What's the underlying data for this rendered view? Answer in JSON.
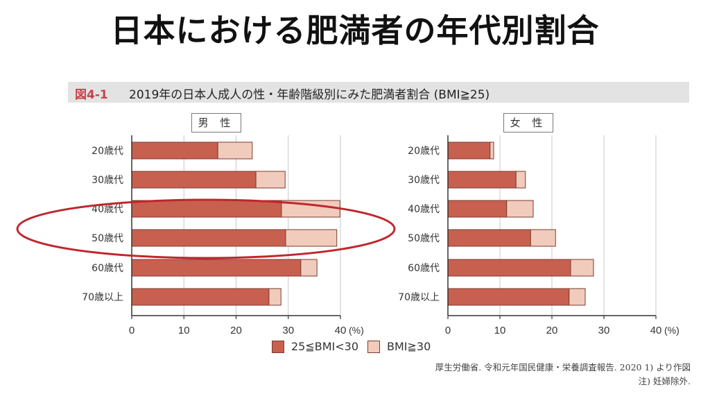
{
  "slide_title": "日本における肥満者の年代別割合",
  "figure": {
    "number": "図4-1",
    "title": "2019年の日本人成人の性・年齢階級別にみた肥満者割合 (BMI≧25)"
  },
  "legend": [
    "25≦BMI<30",
    "BMI≧30"
  ],
  "source": [
    "厚生労働省. 令和元年国民健康・栄養調査報告. 2020 1) より作図",
    "注) 妊婦除外."
  ],
  "colors": {
    "bmi25_30": "#c8604f",
    "bmi30": "#f1cbbb",
    "border": "#7a3b30",
    "highlight": "#c0262d"
  },
  "chart_data": [
    {
      "type": "bar",
      "orientation": "horizontal",
      "stacked": true,
      "title": "男 性",
      "categories": [
        "20歳代",
        "30歳代",
        "40歳代",
        "50歳代",
        "60歳代",
        "70歳以上"
      ],
      "series": [
        {
          "name": "25≦BMI<30",
          "values": [
            16.5,
            23.8,
            28.7,
            29.5,
            32.4,
            26.3
          ]
        },
        {
          "name": "BMI≧30",
          "values": [
            6.6,
            5.6,
            11.2,
            9.8,
            3.1,
            2.3
          ]
        }
      ],
      "xlim": [
        0,
        40
      ],
      "xticks": [
        "0",
        "10",
        "20",
        "30",
        "40"
      ],
      "xunit": "(%)",
      "highlighted": [
        "40歳代",
        "50歳代"
      ]
    },
    {
      "type": "bar",
      "orientation": "horizontal",
      "stacked": true,
      "title": "女 性",
      "categories": [
        "20歳代",
        "30歳代",
        "40歳代",
        "50歳代",
        "60歳代",
        "70歳以上"
      ],
      "series": [
        {
          "name": "25≦BMI<30",
          "values": [
            8.1,
            13.1,
            11.3,
            15.9,
            23.6,
            23.3
          ]
        },
        {
          "name": "BMI≧30",
          "values": [
            0.7,
            1.8,
            5.1,
            4.8,
            4.4,
            3.1
          ]
        }
      ],
      "xlim": [
        0,
        40
      ],
      "xticks": [
        "0",
        "10",
        "20",
        "30",
        "40"
      ],
      "xunit": "(%)"
    }
  ]
}
